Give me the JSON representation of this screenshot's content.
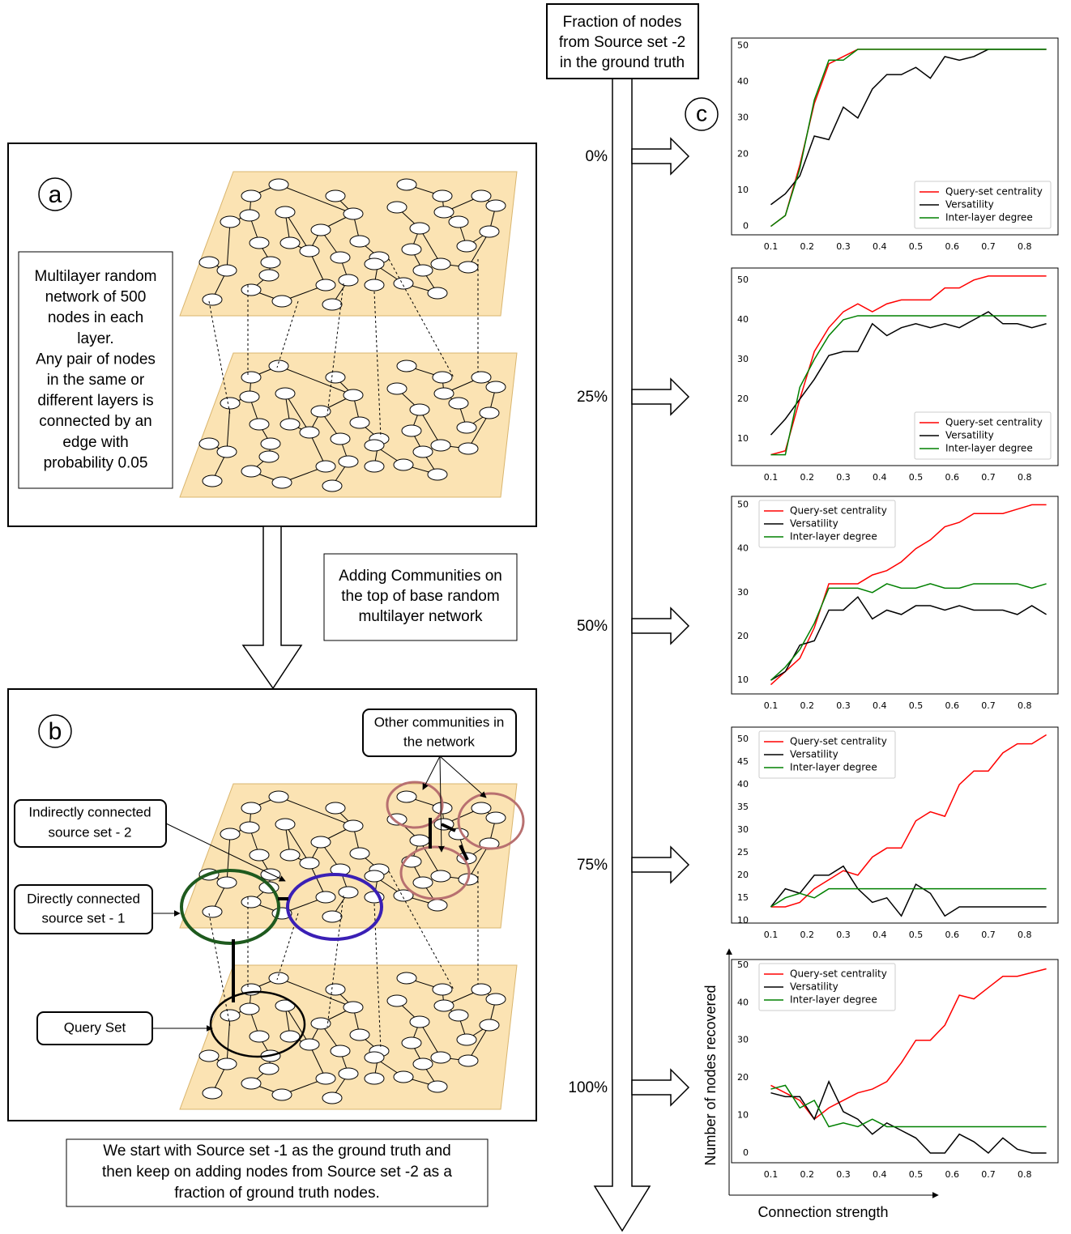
{
  "header": {
    "lines": [
      "Fraction of nodes",
      "from Source set -2",
      "in the ground truth"
    ]
  },
  "panel_labels": {
    "a": "a",
    "b": "b",
    "c": "c"
  },
  "panel_a": {
    "description": [
      "Multilayer random",
      "network of 500",
      "nodes in each",
      "layer.",
      "Any pair of nodes",
      "in the same or",
      "different layers is",
      "connected by an",
      "edge with",
      "probability 0.05"
    ]
  },
  "transition": {
    "lines": [
      "Adding Communities on",
      "the top of base random",
      "multilayer network"
    ]
  },
  "panel_b": {
    "other_communities": [
      "Other communities in",
      "the network"
    ],
    "indirect": [
      "Indirectly connected",
      "source set - 2"
    ],
    "direct": [
      "Directly connected",
      "source set - 1"
    ],
    "query": "Query Set"
  },
  "footer": {
    "lines": [
      "We start with Source set -1 as the ground truth and",
      "then keep on adding nodes from Source set -2 as a",
      "fraction of ground truth nodes."
    ]
  },
  "fractions": [
    "0%",
    "25%",
    "50%",
    "75%",
    "100%"
  ],
  "chart_data": [
    {
      "type": "line",
      "legend": "lower right",
      "x": [
        0.1,
        0.14,
        0.18,
        0.22,
        0.26,
        0.3,
        0.34,
        0.38,
        0.42,
        0.46,
        0.5,
        0.54,
        0.58,
        0.62,
        0.66,
        0.7,
        0.74,
        0.78,
        0.82,
        0.86
      ],
      "xlim": [
        0.09,
        0.89
      ],
      "xticks": [
        0.1,
        0.2,
        0.3,
        0.4,
        0.5,
        0.6,
        0.7,
        0.8
      ],
      "ylim": [
        -1,
        51
      ],
      "yticks": [
        0,
        10,
        20,
        30,
        40,
        50
      ],
      "series": [
        {
          "name": "Query-set centrality",
          "color": "#ff0000",
          "values": [
            0,
            3,
            17,
            34,
            45,
            47,
            49,
            49,
            49,
            49,
            49,
            49,
            49,
            49,
            49,
            49,
            49,
            49,
            49,
            49
          ]
        },
        {
          "name": "Versatility",
          "color": "#000000",
          "values": [
            6,
            9,
            14,
            25,
            24,
            33,
            30,
            38,
            42,
            42,
            44,
            41,
            47,
            46,
            47,
            49,
            49,
            49,
            49,
            49
          ]
        },
        {
          "name": "Inter-layer degree",
          "color": "#008000",
          "values": [
            0,
            3,
            16,
            35,
            46,
            46,
            49,
            49,
            49,
            49,
            49,
            49,
            49,
            49,
            49,
            49,
            49,
            49,
            49,
            49
          ]
        }
      ]
    },
    {
      "type": "line",
      "legend": "lower right",
      "x": [
        0.1,
        0.14,
        0.18,
        0.22,
        0.26,
        0.3,
        0.34,
        0.38,
        0.42,
        0.46,
        0.5,
        0.54,
        0.58,
        0.62,
        0.66,
        0.7,
        0.74,
        0.78,
        0.82,
        0.86
      ],
      "xlim": [
        0.09,
        0.89
      ],
      "xticks": [
        0.1,
        0.2,
        0.3,
        0.4,
        0.5,
        0.6,
        0.7,
        0.8
      ],
      "ylim": [
        4.5,
        52
      ],
      "yticks": [
        10,
        20,
        30,
        40,
        50
      ],
      "series": [
        {
          "name": "Query-set centrality",
          "color": "#ff0000",
          "values": [
            6,
            7,
            20,
            32,
            38,
            42,
            44,
            42,
            44,
            45,
            45,
            45,
            48,
            48,
            50,
            51,
            51,
            51,
            51,
            51
          ]
        },
        {
          "name": "Versatility",
          "color": "#000000",
          "values": [
            11,
            15,
            20,
            25,
            31,
            32,
            32,
            39,
            36,
            38,
            39,
            38,
            39,
            38,
            40,
            42,
            39,
            39,
            38,
            39
          ]
        },
        {
          "name": "Inter-layer degree",
          "color": "#008000",
          "values": [
            6,
            6,
            23,
            30,
            36,
            40,
            41,
            41,
            41,
            41,
            41,
            41,
            41,
            41,
            41,
            41,
            41,
            41,
            41,
            41
          ]
        }
      ]
    },
    {
      "type": "line",
      "legend": "upper left",
      "x": [
        0.1,
        0.14,
        0.18,
        0.22,
        0.26,
        0.3,
        0.34,
        0.38,
        0.42,
        0.46,
        0.5,
        0.54,
        0.58,
        0.62,
        0.66,
        0.7,
        0.74,
        0.78,
        0.82,
        0.86
      ],
      "xlim": [
        0.09,
        0.89
      ],
      "xticks": [
        0.1,
        0.2,
        0.3,
        0.4,
        0.5,
        0.6,
        0.7,
        0.8
      ],
      "ylim": [
        8,
        51
      ],
      "yticks": [
        10,
        20,
        30,
        40,
        50
      ],
      "series": [
        {
          "name": "Query-set centrality",
          "color": "#ff0000",
          "values": [
            9,
            12,
            15,
            22,
            32,
            32,
            32,
            34,
            35,
            37,
            40,
            42,
            45,
            46,
            48,
            48,
            48,
            49,
            50,
            50
          ]
        },
        {
          "name": "Versatility",
          "color": "#000000",
          "values": [
            10,
            12,
            18,
            19,
            26,
            26,
            29,
            24,
            26,
            25,
            27,
            27,
            26,
            27,
            26,
            26,
            26,
            25,
            27,
            25
          ]
        },
        {
          "name": "Inter-layer degree",
          "color": "#008000",
          "values": [
            10,
            13,
            17,
            23,
            31,
            31,
            31,
            30,
            32,
            31,
            31,
            32,
            31,
            31,
            32,
            32,
            32,
            32,
            31,
            32
          ]
        }
      ]
    },
    {
      "type": "line",
      "legend": "upper left",
      "x": [
        0.1,
        0.14,
        0.18,
        0.22,
        0.26,
        0.3,
        0.34,
        0.38,
        0.42,
        0.46,
        0.5,
        0.54,
        0.58,
        0.62,
        0.66,
        0.7,
        0.74,
        0.78,
        0.82,
        0.86
      ],
      "xlim": [
        0.09,
        0.89
      ],
      "xticks": [
        0.1,
        0.2,
        0.3,
        0.4,
        0.5,
        0.6,
        0.7,
        0.8
      ],
      "ylim": [
        10.5,
        51.8
      ],
      "yticks": [
        10,
        15,
        20,
        25,
        30,
        35,
        40,
        45,
        50
      ],
      "series": [
        {
          "name": "Query-set centrality",
          "color": "#ff0000",
          "values": [
            13,
            13,
            14,
            17,
            19,
            21,
            20,
            24,
            26,
            26,
            32,
            34,
            33,
            40,
            43,
            43,
            47,
            49,
            49,
            51
          ]
        },
        {
          "name": "Versatility",
          "color": "#000000",
          "values": [
            13,
            17,
            16,
            20,
            20,
            22,
            17,
            14,
            15,
            11,
            18,
            16,
            11,
            13,
            13,
            13,
            13,
            13,
            13,
            13
          ]
        },
        {
          "name": "Inter-layer degree",
          "color": "#008000",
          "values": [
            13,
            15,
            16,
            15,
            17,
            17,
            17,
            17,
            17,
            17,
            17,
            17,
            17,
            17,
            17,
            17,
            17,
            17,
            17,
            17
          ]
        }
      ]
    },
    {
      "type": "line",
      "legend": "upper left",
      "x_label": "Connection strength",
      "y_label": "Number of nodes recovered",
      "x": [
        0.1,
        0.14,
        0.18,
        0.22,
        0.26,
        0.3,
        0.34,
        0.38,
        0.42,
        0.46,
        0.5,
        0.54,
        0.58,
        0.62,
        0.66,
        0.7,
        0.74,
        0.78,
        0.82,
        0.86
      ],
      "xlim": [
        0.09,
        0.89
      ],
      "xticks": [
        0.1,
        0.2,
        0.3,
        0.4,
        0.5,
        0.6,
        0.7,
        0.8
      ],
      "ylim": [
        -1.3,
        50.4
      ],
      "yticks": [
        0,
        10,
        20,
        30,
        40,
        50
      ],
      "series": [
        {
          "name": "Query-set centrality",
          "color": "#ff0000",
          "values": [
            18,
            16,
            14,
            9,
            12,
            14,
            16,
            17,
            19,
            24,
            30,
            30,
            34,
            42,
            41,
            44,
            47,
            47,
            48,
            49
          ]
        },
        {
          "name": "Versatility",
          "color": "#000000",
          "values": [
            16,
            15,
            15,
            9,
            19,
            11,
            9,
            5,
            8,
            6,
            4,
            0,
            0,
            5,
            3,
            0,
            4,
            1,
            0,
            0
          ]
        },
        {
          "name": "Inter-layer degree",
          "color": "#008000",
          "values": [
            17,
            18,
            12,
            14,
            7,
            8,
            7,
            9,
            7,
            7,
            7,
            7,
            7,
            7,
            7,
            7,
            7,
            7,
            7,
            7
          ]
        }
      ]
    }
  ]
}
